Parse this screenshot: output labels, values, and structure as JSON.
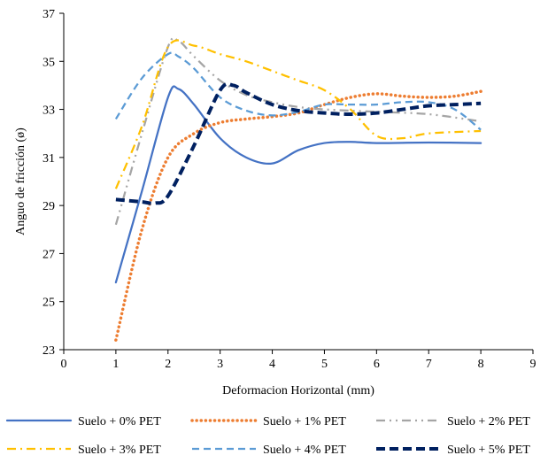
{
  "chart_data": {
    "type": "line",
    "title": "",
    "xlabel": "Deformacion Horizontal (mm)",
    "ylabel": "Anguo de fricción (ø)",
    "xlim": [
      0,
      9
    ],
    "ylim": [
      23,
      37
    ],
    "xticks": [
      0,
      1,
      2,
      3,
      4,
      5,
      6,
      7,
      8,
      9
    ],
    "yticks": [
      23,
      25,
      27,
      29,
      31,
      33,
      35,
      37
    ],
    "grid": false,
    "legend": "bottom",
    "series": [
      {
        "name": "Suelo + 0% PET",
        "color": "#4472C4",
        "dash": "solid",
        "points": [
          [
            1,
            25.8
          ],
          [
            1.5,
            29.6
          ],
          [
            2,
            33.5
          ],
          [
            2.2,
            33.85
          ],
          [
            2.5,
            33.2
          ],
          [
            3,
            31.8
          ],
          [
            3.5,
            31.0
          ],
          [
            4,
            30.75
          ],
          [
            4.5,
            31.3
          ],
          [
            5,
            31.6
          ],
          [
            5.5,
            31.65
          ],
          [
            6,
            31.6
          ],
          [
            7,
            31.62
          ],
          [
            8,
            31.6
          ]
        ]
      },
      {
        "name": "Suelo + 1% PET",
        "color": "#ED7D31",
        "dash": "dot",
        "points": [
          [
            1,
            23.4
          ],
          [
            1.5,
            28.0
          ],
          [
            2,
            31.0
          ],
          [
            2.5,
            32.0
          ],
          [
            3,
            32.45
          ],
          [
            3.5,
            32.6
          ],
          [
            4,
            32.7
          ],
          [
            4.5,
            32.85
          ],
          [
            5,
            33.2
          ],
          [
            5.5,
            33.5
          ],
          [
            6,
            33.65
          ],
          [
            6.5,
            33.55
          ],
          [
            7,
            33.5
          ],
          [
            7.5,
            33.55
          ],
          [
            8,
            33.75
          ]
        ]
      },
      {
        "name": "Suelo + 2% PET",
        "color": "#A5A5A5",
        "dash": "dashdotdot",
        "points": [
          [
            1,
            28.2
          ],
          [
            1.5,
            32.0
          ],
          [
            2,
            35.6
          ],
          [
            2.2,
            35.85
          ],
          [
            2.5,
            35.2
          ],
          [
            3,
            34.2
          ],
          [
            3.5,
            33.6
          ],
          [
            4,
            33.3
          ],
          [
            4.5,
            33.1
          ],
          [
            5,
            33.0
          ],
          [
            6,
            32.9
          ],
          [
            7,
            32.8
          ],
          [
            8,
            32.5
          ]
        ]
      },
      {
        "name": "Suelo + 3% PET",
        "color": "#FFC000",
        "dash": "dashdot",
        "points": [
          [
            1,
            29.7
          ],
          [
            1.5,
            32.3
          ],
          [
            2,
            35.6
          ],
          [
            2.5,
            35.65
          ],
          [
            3,
            35.3
          ],
          [
            3.5,
            35.0
          ],
          [
            4,
            34.6
          ],
          [
            4.5,
            34.2
          ],
          [
            5,
            33.8
          ],
          [
            5.5,
            33.0
          ],
          [
            6,
            31.9
          ],
          [
            6.5,
            31.8
          ],
          [
            7,
            32.0
          ],
          [
            8,
            32.1
          ]
        ]
      },
      {
        "name": "Suelo + 4% PET",
        "color": "#5B9BD5",
        "dash": "dash",
        "points": [
          [
            1,
            32.6
          ],
          [
            1.5,
            34.3
          ],
          [
            2,
            35.3
          ],
          [
            2.2,
            35.2
          ],
          [
            2.5,
            34.7
          ],
          [
            3,
            33.5
          ],
          [
            3.5,
            32.95
          ],
          [
            4,
            32.75
          ],
          [
            4.5,
            32.9
          ],
          [
            5,
            33.2
          ],
          [
            5.5,
            33.2
          ],
          [
            6,
            33.2
          ],
          [
            6.5,
            33.3
          ],
          [
            7,
            33.3
          ],
          [
            7.5,
            33.0
          ],
          [
            8,
            32.15
          ]
        ]
      },
      {
        "name": "Suelo + 5% PET",
        "color": "#002060",
        "dash": "longdash",
        "points": [
          [
            1,
            29.25
          ],
          [
            1.5,
            29.15
          ],
          [
            1.75,
            29.1
          ],
          [
            2,
            29.4
          ],
          [
            2.5,
            31.5
          ],
          [
            3,
            33.8
          ],
          [
            3.25,
            34.0
          ],
          [
            3.5,
            33.7
          ],
          [
            4,
            33.2
          ],
          [
            4.5,
            32.95
          ],
          [
            5,
            32.85
          ],
          [
            5.5,
            32.8
          ],
          [
            6,
            32.85
          ],
          [
            6.5,
            33.0
          ],
          [
            7,
            33.15
          ],
          [
            7.5,
            33.2
          ],
          [
            8,
            33.25
          ]
        ]
      }
    ]
  }
}
